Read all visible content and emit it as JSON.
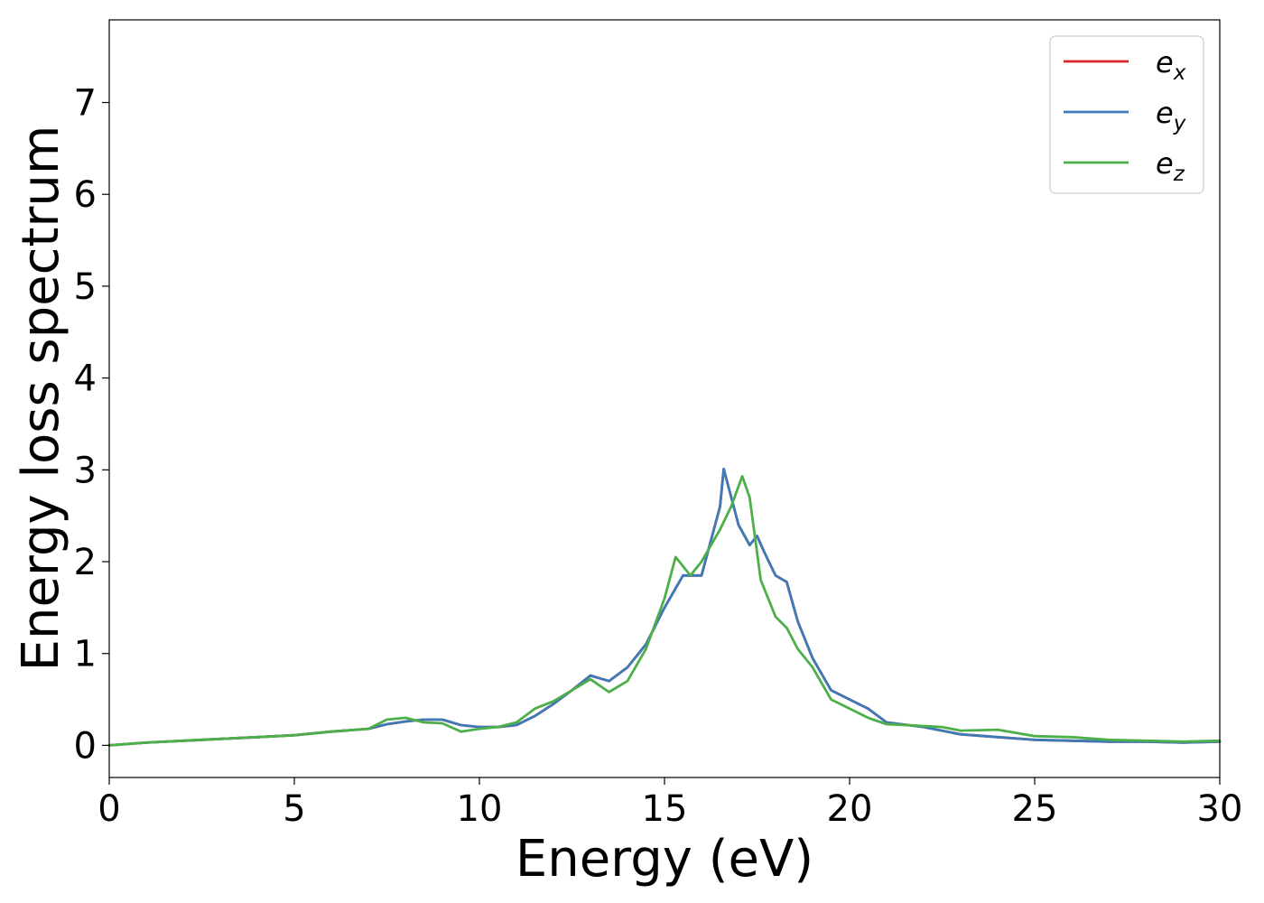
{
  "chart_data": {
    "type": "line",
    "title": "",
    "xlabel": "Energy (eV)",
    "ylabel": "Energy loss spectrum",
    "xlim": [
      0,
      30
    ],
    "ylim": [
      -0.35,
      7.9
    ],
    "xticks": [
      0,
      5,
      10,
      15,
      20,
      25,
      30
    ],
    "xtick_labels": [
      "0",
      "5",
      "10",
      "15",
      "20",
      "25",
      "30"
    ],
    "yticks": [
      0,
      1,
      2,
      3,
      4,
      5,
      6,
      7
    ],
    "ytick_labels": [
      "0",
      "1",
      "2",
      "3",
      "4",
      "5",
      "6",
      "7"
    ],
    "grid": false,
    "legend_position": "top-right",
    "series": [
      {
        "name": "e",
        "subscript": "x",
        "color": "#d62728",
        "x": [
          0,
          1,
          2,
          3,
          4,
          5,
          6,
          7,
          7.5,
          8,
          8.5,
          9,
          9.5,
          10,
          10.5,
          11,
          11.5,
          12,
          12.5,
          13,
          13.5,
          14,
          14.5,
          15,
          15.5,
          16,
          16.5,
          16.6,
          17,
          17.3,
          17.5,
          17.7,
          18,
          18.3,
          18.6,
          19,
          19.5,
          20,
          20.5,
          21,
          22,
          23,
          24,
          25,
          26,
          27,
          28,
          29,
          30
        ],
        "y": [
          0.0,
          0.03,
          0.05,
          0.07,
          0.09,
          0.11,
          0.15,
          0.18,
          0.23,
          0.26,
          0.28,
          0.28,
          0.22,
          0.2,
          0.2,
          0.22,
          0.32,
          0.45,
          0.6,
          0.76,
          0.7,
          0.85,
          1.1,
          1.5,
          1.85,
          1.85,
          2.6,
          3.01,
          2.4,
          2.18,
          2.28,
          2.1,
          1.85,
          1.78,
          1.35,
          0.95,
          0.6,
          0.5,
          0.4,
          0.25,
          0.2,
          0.12,
          0.09,
          0.06,
          0.05,
          0.04,
          0.04,
          0.03,
          0.04
        ]
      },
      {
        "name": "e",
        "subscript": "y",
        "color": "#3e7ab8",
        "x": [
          0,
          1,
          2,
          3,
          4,
          5,
          6,
          7,
          7.5,
          8,
          8.5,
          9,
          9.5,
          10,
          10.5,
          11,
          11.5,
          12,
          12.5,
          13,
          13.5,
          14,
          14.5,
          15,
          15.5,
          16,
          16.5,
          16.6,
          17,
          17.3,
          17.5,
          17.7,
          18,
          18.3,
          18.6,
          19,
          19.5,
          20,
          20.5,
          21,
          22,
          23,
          24,
          25,
          26,
          27,
          28,
          29,
          30
        ],
        "y": [
          0.0,
          0.03,
          0.05,
          0.07,
          0.09,
          0.11,
          0.15,
          0.18,
          0.23,
          0.26,
          0.28,
          0.28,
          0.22,
          0.2,
          0.2,
          0.22,
          0.32,
          0.45,
          0.6,
          0.76,
          0.7,
          0.85,
          1.1,
          1.5,
          1.85,
          1.85,
          2.6,
          3.01,
          2.4,
          2.18,
          2.28,
          2.1,
          1.85,
          1.78,
          1.35,
          0.95,
          0.6,
          0.5,
          0.4,
          0.25,
          0.2,
          0.12,
          0.09,
          0.06,
          0.05,
          0.04,
          0.04,
          0.03,
          0.04
        ]
      },
      {
        "name": "e",
        "subscript": "z",
        "color": "#4daf4a",
        "x": [
          0,
          1,
          2,
          3,
          4,
          5,
          6,
          7,
          7.5,
          8,
          8.5,
          9,
          9.5,
          10,
          10.5,
          11,
          11.5,
          12,
          12.5,
          13,
          13.5,
          14,
          14.5,
          15,
          15.3,
          15.7,
          16,
          16.5,
          16.8,
          17.1,
          17.3,
          17.6,
          18,
          18.3,
          18.6,
          19,
          19.5,
          20,
          20.5,
          21,
          22,
          22.5,
          23,
          24,
          25,
          26,
          27,
          28,
          29,
          30
        ],
        "y": [
          0.0,
          0.03,
          0.05,
          0.07,
          0.09,
          0.11,
          0.15,
          0.18,
          0.28,
          0.3,
          0.25,
          0.24,
          0.15,
          0.18,
          0.2,
          0.25,
          0.4,
          0.48,
          0.6,
          0.72,
          0.58,
          0.7,
          1.05,
          1.6,
          2.05,
          1.85,
          2.0,
          2.35,
          2.6,
          2.93,
          2.7,
          1.8,
          1.4,
          1.28,
          1.05,
          0.85,
          0.5,
          0.4,
          0.3,
          0.23,
          0.21,
          0.2,
          0.16,
          0.17,
          0.1,
          0.09,
          0.06,
          0.05,
          0.04,
          0.05
        ]
      }
    ]
  }
}
